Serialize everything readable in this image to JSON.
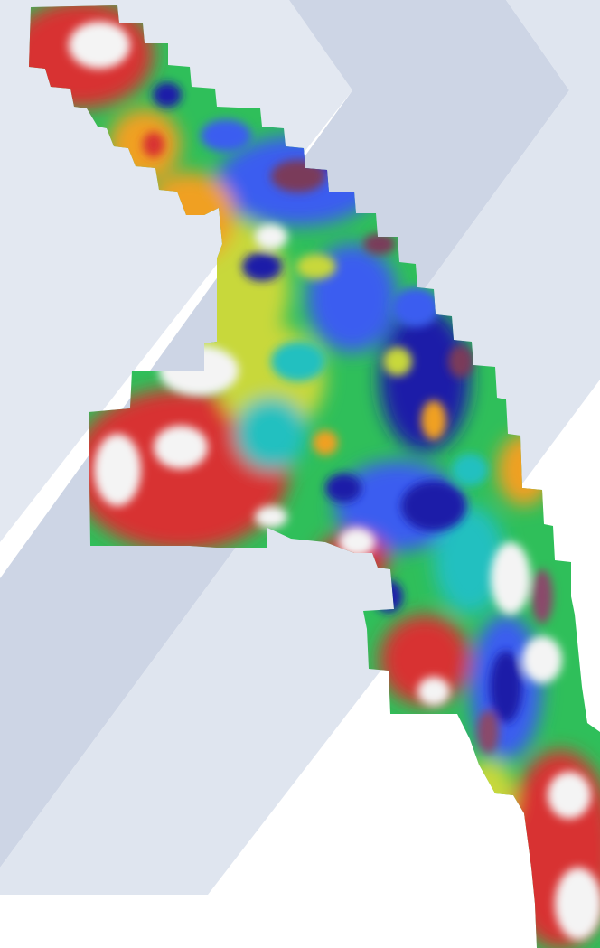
{
  "map": {
    "type": "geophysical-survey-grid",
    "colour_ramp": [
      "#1a1aa8",
      "#3a5df0",
      "#20c0c0",
      "#2fbf5a",
      "#c8d83a",
      "#f0a020",
      "#d83030",
      "#f4f4f4"
    ],
    "high_background": "#e7ecf3",
    "background_chevron_colors": [
      "#dfe4ee",
      "#c9d1e2",
      "#d5dbe8"
    ]
  }
}
